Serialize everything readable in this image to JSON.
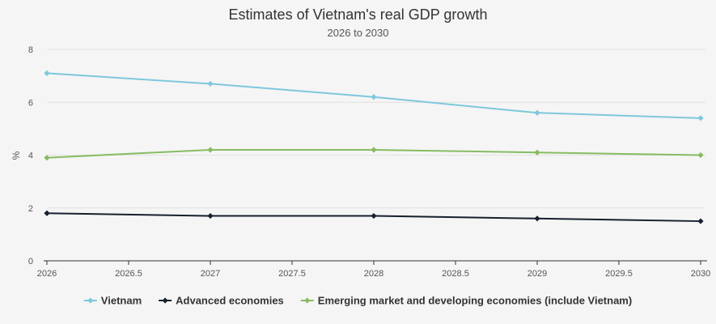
{
  "chart_data": {
    "type": "line",
    "title": "Estimates of Vietnam's real GDP growth",
    "subtitle": "2026 to 2030",
    "xlabel": "",
    "ylabel": "%",
    "x": [
      2026,
      2027,
      2028,
      2029,
      2030
    ],
    "x_ticks": [
      "2026",
      "2026.5",
      "2027",
      "2027.5",
      "2028",
      "2028.5",
      "2029",
      "2029.5",
      "2030"
    ],
    "y_ticks": [
      "0",
      "2",
      "4",
      "6",
      "8"
    ],
    "xlim": [
      2026,
      2030
    ],
    "ylim": [
      0,
      8
    ],
    "grid": true,
    "legend_position": "bottom",
    "series": [
      {
        "name": "Vietnam",
        "color": "#7ec8dc",
        "values": [
          7.1,
          6.7,
          6.2,
          5.6,
          5.4
        ]
      },
      {
        "name": "Advanced economies",
        "color": "#17202e",
        "values": [
          1.8,
          1.7,
          1.7,
          1.6,
          1.5
        ]
      },
      {
        "name": "Emerging market and developing economies (include Vietnam)",
        "color": "#86bc62",
        "values": [
          3.9,
          4.2,
          4.2,
          4.1,
          4.0
        ]
      }
    ]
  }
}
